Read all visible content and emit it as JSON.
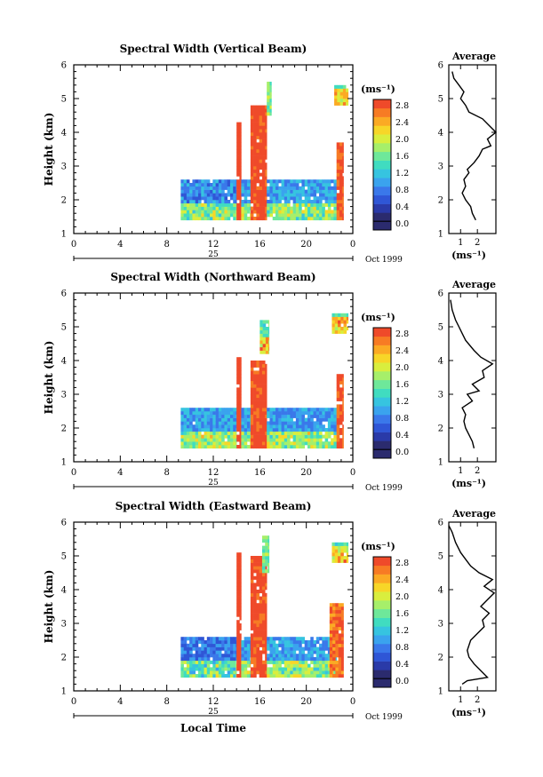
{
  "chart_data": [
    {
      "type": "heatmap",
      "title": "Spectral Width (Vertical Beam)",
      "xlabel": "",
      "ylabel": "Height (km)",
      "xticks": [
        "0",
        "4",
        "8",
        "12",
        "16",
        "20",
        "0"
      ],
      "xlim": [
        0,
        24
      ],
      "yticks": [
        "1",
        "2",
        "3",
        "4",
        "5",
        "6"
      ],
      "ylim": [
        1,
        6
      ],
      "date_marker": "25",
      "date_label": "Oct 1999",
      "colorbar": {
        "unit": "(ms⁻¹)",
        "ticks": [
          "2.8",
          "2.4",
          "2.0",
          "1.6",
          "1.2",
          "0.8",
          "0.4",
          "0.0"
        ],
        "range": [
          0,
          3.0
        ]
      },
      "average_profile": {
        "title": "Average",
        "xlabel": "(ms⁻¹)",
        "xticks": [
          "1",
          "2"
        ],
        "xlim": [
          0.3,
          3.1
        ],
        "points": [
          [
            1.9,
            1.4
          ],
          [
            1.7,
            1.6
          ],
          [
            1.6,
            1.8
          ],
          [
            1.3,
            2.0
          ],
          [
            1.1,
            2.2
          ],
          [
            1.3,
            2.4
          ],
          [
            1.2,
            2.6
          ],
          [
            1.5,
            2.8
          ],
          [
            1.4,
            2.9
          ],
          [
            1.8,
            3.1
          ],
          [
            2.1,
            3.3
          ],
          [
            2.3,
            3.5
          ],
          [
            2.8,
            3.6
          ],
          [
            2.6,
            3.8
          ],
          [
            3.1,
            4.0
          ],
          [
            2.7,
            4.2
          ],
          [
            2.3,
            4.4
          ],
          [
            1.5,
            4.6
          ],
          [
            1.3,
            4.8
          ],
          [
            1.0,
            5.0
          ],
          [
            1.2,
            5.2
          ],
          [
            0.9,
            5.4
          ],
          [
            0.6,
            5.6
          ],
          [
            0.5,
            5.8
          ]
        ]
      },
      "bands": [
        {
          "t0": 9.2,
          "t1": 14.0,
          "h0": 1.4,
          "h1": 2.6,
          "avg": 0.8
        },
        {
          "t0": 14.0,
          "t1": 14.4,
          "h0": 1.4,
          "h1": 4.3,
          "avg": 2.9
        },
        {
          "t0": 14.4,
          "t1": 15.2,
          "h0": 1.4,
          "h1": 2.6,
          "avg": 0.9
        },
        {
          "t0": 15.2,
          "t1": 16.6,
          "h0": 1.4,
          "h1": 4.8,
          "avg": 2.8
        },
        {
          "t0": 16.6,
          "t1": 17.0,
          "h0": 4.5,
          "h1": 5.5,
          "avg": 1.6
        },
        {
          "t0": 16.6,
          "t1": 22.6,
          "h0": 1.4,
          "h1": 2.6,
          "avg": 0.9
        },
        {
          "t0": 22.6,
          "t1": 23.2,
          "h0": 1.4,
          "h1": 3.7,
          "avg": 2.7
        },
        {
          "t0": 22.4,
          "t1": 23.6,
          "h0": 4.8,
          "h1": 5.4,
          "avg": 1.3
        }
      ]
    },
    {
      "type": "heatmap",
      "title": "Spectral Width (Northward Beam)",
      "xlabel": "",
      "ylabel": "Height (km)",
      "xticks": [
        "0",
        "4",
        "8",
        "12",
        "16",
        "20",
        "0"
      ],
      "xlim": [
        0,
        24
      ],
      "yticks": [
        "1",
        "2",
        "3",
        "4",
        "5",
        "6"
      ],
      "ylim": [
        1,
        6
      ],
      "date_marker": "25",
      "date_label": "Oct 1999",
      "colorbar": {
        "unit": "(ms⁻¹)",
        "ticks": [
          "2.8",
          "2.4",
          "2.0",
          "1.6",
          "1.2",
          "0.8",
          "0.4",
          "0.0"
        ],
        "range": [
          0,
          3.0
        ]
      },
      "average_profile": {
        "title": "Average",
        "xlabel": "(ms⁻¹)",
        "xticks": [
          "1",
          "2"
        ],
        "xlim": [
          0.3,
          3.1
        ],
        "points": [
          [
            1.8,
            1.4
          ],
          [
            1.7,
            1.6
          ],
          [
            1.5,
            1.8
          ],
          [
            1.3,
            2.0
          ],
          [
            1.2,
            2.2
          ],
          [
            1.3,
            2.4
          ],
          [
            1.1,
            2.6
          ],
          [
            1.7,
            2.8
          ],
          [
            1.4,
            3.0
          ],
          [
            2.1,
            3.1
          ],
          [
            1.7,
            3.3
          ],
          [
            2.4,
            3.5
          ],
          [
            2.3,
            3.7
          ],
          [
            2.9,
            3.9
          ],
          [
            2.2,
            4.1
          ],
          [
            1.8,
            4.3
          ],
          [
            1.3,
            4.6
          ],
          [
            1.1,
            4.8
          ],
          [
            0.9,
            5.0
          ],
          [
            0.7,
            5.2
          ],
          [
            0.5,
            5.5
          ],
          [
            0.4,
            5.8
          ]
        ]
      },
      "bands": [
        {
          "t0": 9.2,
          "t1": 14.0,
          "h0": 1.4,
          "h1": 2.6,
          "avg": 0.9
        },
        {
          "t0": 14.0,
          "t1": 14.4,
          "h0": 1.4,
          "h1": 4.1,
          "avg": 2.9
        },
        {
          "t0": 14.4,
          "t1": 15.2,
          "h0": 1.4,
          "h1": 2.6,
          "avg": 0.9
        },
        {
          "t0": 15.2,
          "t1": 16.6,
          "h0": 1.4,
          "h1": 4.0,
          "avg": 2.8
        },
        {
          "t0": 16.0,
          "t1": 16.8,
          "h0": 4.2,
          "h1": 5.2,
          "avg": 1.4
        },
        {
          "t0": 16.6,
          "t1": 22.6,
          "h0": 1.4,
          "h1": 2.6,
          "avg": 0.9
        },
        {
          "t0": 22.6,
          "t1": 23.2,
          "h0": 1.4,
          "h1": 3.6,
          "avg": 2.7
        },
        {
          "t0": 22.2,
          "t1": 23.6,
          "h0": 4.8,
          "h1": 5.4,
          "avg": 1.4
        }
      ]
    },
    {
      "type": "heatmap",
      "title": "Spectral Width (Eastward Beam)",
      "xlabel": "Local Time",
      "ylabel": "Height (km)",
      "xticks": [
        "0",
        "4",
        "8",
        "12",
        "16",
        "20",
        "0"
      ],
      "xlim": [
        0,
        24
      ],
      "yticks": [
        "1",
        "2",
        "3",
        "4",
        "5",
        "6"
      ],
      "ylim": [
        1,
        6
      ],
      "date_marker": "25",
      "date_label": "Oct 1999",
      "colorbar": {
        "unit": "(ms⁻¹)",
        "ticks": [
          "2.8",
          "2.4",
          "2.0",
          "1.6",
          "1.2",
          "0.8",
          "0.4",
          "0.0"
        ],
        "range": [
          0,
          3.0
        ]
      },
      "average_profile": {
        "title": "Average",
        "xlabel": "(ms⁻¹)",
        "xticks": [
          "1",
          "2"
        ],
        "xlim": [
          0.3,
          3.1
        ],
        "points": [
          [
            1.1,
            1.2
          ],
          [
            1.4,
            1.3
          ],
          [
            2.6,
            1.4
          ],
          [
            2.2,
            1.6
          ],
          [
            1.8,
            1.8
          ],
          [
            1.5,
            2.0
          ],
          [
            1.4,
            2.2
          ],
          [
            1.6,
            2.5
          ],
          [
            2.0,
            2.7
          ],
          [
            2.4,
            2.9
          ],
          [
            2.3,
            3.1
          ],
          [
            2.7,
            3.3
          ],
          [
            2.2,
            3.5
          ],
          [
            2.6,
            3.7
          ],
          [
            3.0,
            3.9
          ],
          [
            2.4,
            4.1
          ],
          [
            2.9,
            4.3
          ],
          [
            2.1,
            4.5
          ],
          [
            1.6,
            4.7
          ],
          [
            1.3,
            4.9
          ],
          [
            1.0,
            5.1
          ],
          [
            0.7,
            5.4
          ],
          [
            0.5,
            5.7
          ],
          [
            0.3,
            5.9
          ]
        ]
      },
      "bands": [
        {
          "t0": 9.2,
          "t1": 14.0,
          "h0": 1.4,
          "h1": 2.6,
          "avg": 0.7
        },
        {
          "t0": 14.0,
          "t1": 14.4,
          "h0": 1.4,
          "h1": 5.1,
          "avg": 2.9
        },
        {
          "t0": 14.4,
          "t1": 15.2,
          "h0": 1.4,
          "h1": 2.6,
          "avg": 0.9
        },
        {
          "t0": 15.2,
          "t1": 16.6,
          "h0": 1.4,
          "h1": 5.0,
          "avg": 2.8
        },
        {
          "t0": 16.2,
          "t1": 16.8,
          "h0": 4.5,
          "h1": 5.6,
          "avg": 1.6
        },
        {
          "t0": 16.6,
          "t1": 22.6,
          "h0": 1.4,
          "h1": 2.6,
          "avg": 0.9
        },
        {
          "t0": 22.0,
          "t1": 23.2,
          "h0": 1.4,
          "h1": 3.6,
          "avg": 2.6
        },
        {
          "t0": 22.2,
          "t1": 23.6,
          "h0": 4.8,
          "h1": 5.4,
          "avg": 1.3
        }
      ]
    }
  ],
  "colors": {
    "scale": [
      "#2b2b6e",
      "#2a3aa8",
      "#2f56d6",
      "#3a78ea",
      "#3aa3ee",
      "#36c4e0",
      "#40dcc0",
      "#6ee89a",
      "#a6ef6a",
      "#d9ee3e",
      "#f7d628",
      "#fbaa24",
      "#f77b24",
      "#ef4a2a"
    ]
  }
}
